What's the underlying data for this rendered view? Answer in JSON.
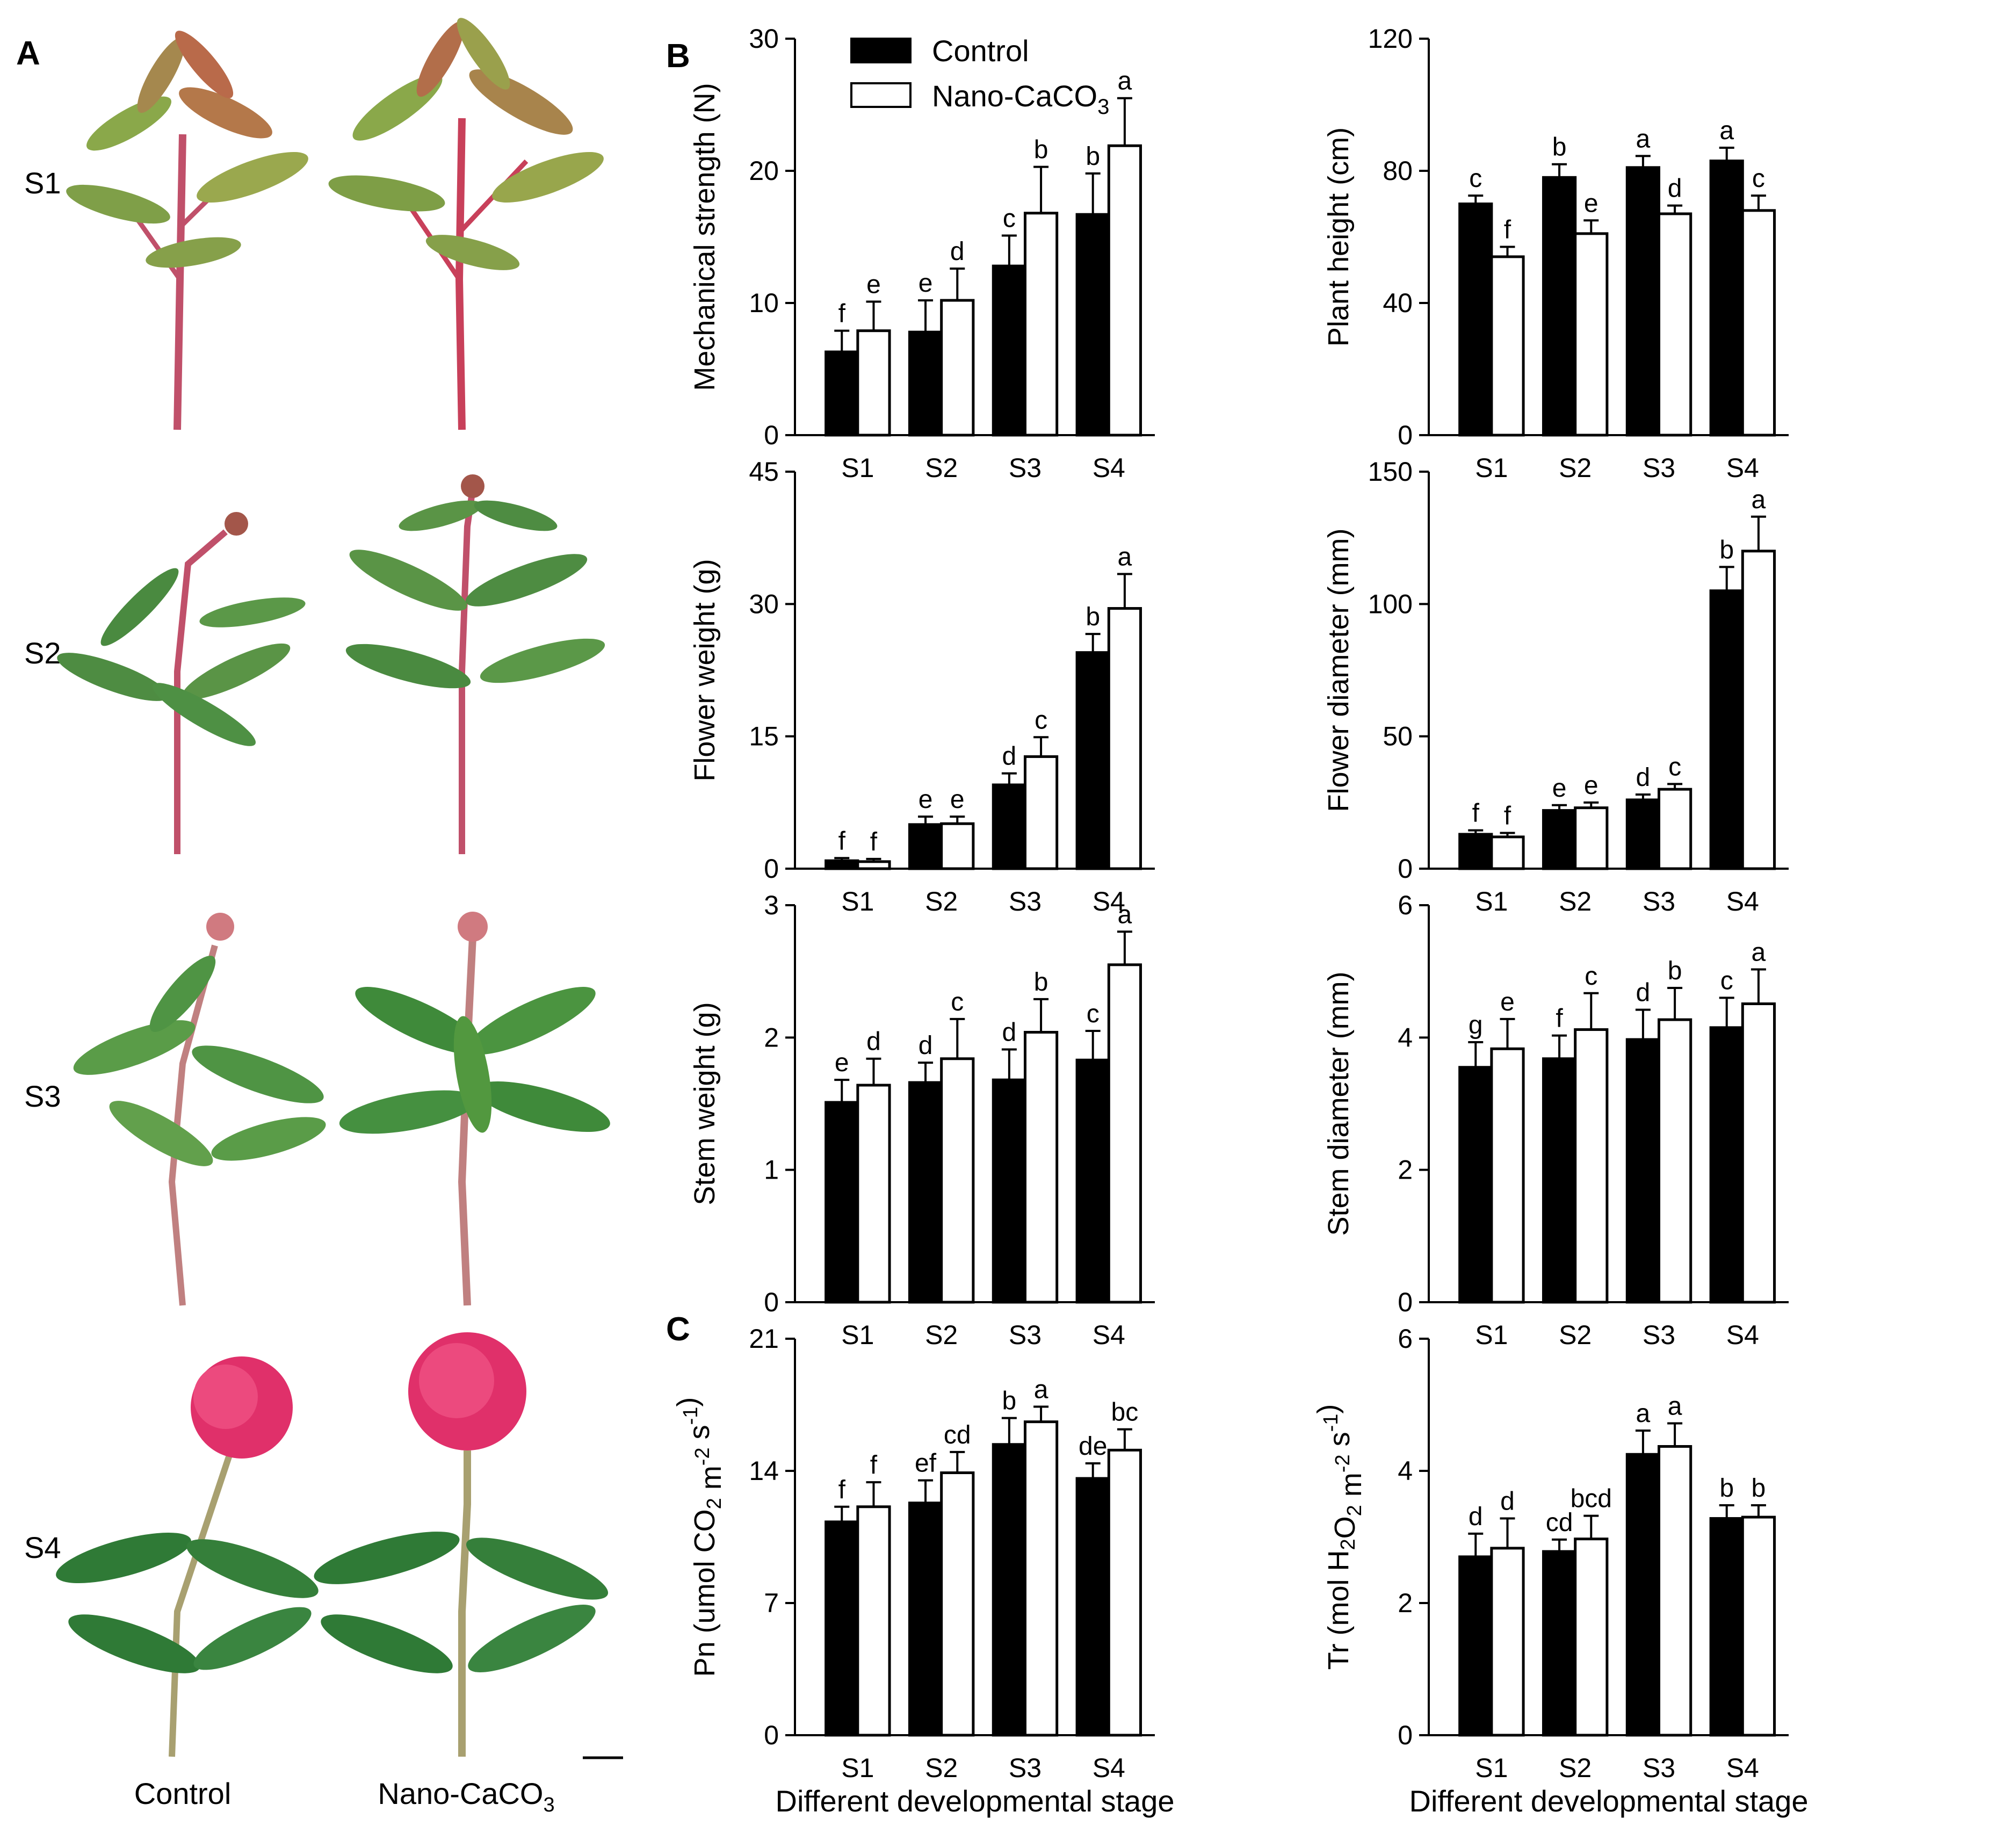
{
  "panel_letters": {
    "a": "A",
    "b": "B",
    "c": "C"
  },
  "photo_panel": {
    "stage_labels": [
      "S1",
      "S2",
      "S3",
      "S4"
    ],
    "column_labels": {
      "control": "Control",
      "nano": "Nano-CaCO",
      "nano_sub": "3"
    },
    "scale_bar": "scale-bar"
  },
  "legend": {
    "entries": [
      {
        "label": "Control",
        "color": "#000000"
      },
      {
        "label": "Nano-CaCO",
        "sub": "3",
        "color": "#ffffff"
      }
    ]
  },
  "colors": {
    "control": "#000000",
    "nano": "#ffffff",
    "axis": "#000000",
    "stem_dark": "#c0506a",
    "leaf_green": "#3f8a3a",
    "flower_pink": "#e0306a"
  },
  "chart_data": [
    {
      "id": "mechanical",
      "type": "bar",
      "ylabel": "Mechanical strength (N)",
      "ylabel_parts": [
        {
          "t": "Mechanical strength (N)"
        }
      ],
      "xlabel": "",
      "ylim": [
        0,
        30
      ],
      "yticks": [
        0,
        10,
        20,
        30
      ],
      "categories": [
        "S1",
        "S2",
        "S3",
        "S4"
      ],
      "series": [
        {
          "name": "Control",
          "values": [
            6.3,
            7.8,
            12.8,
            16.7
          ],
          "errors": [
            1.6,
            2.4,
            2.3,
            3.1
          ],
          "letters": [
            "f",
            "e",
            "c",
            "b"
          ]
        },
        {
          "name": "Nano-CaCO3",
          "values": [
            7.9,
            10.2,
            16.8,
            21.9
          ],
          "errors": [
            2.2,
            2.4,
            3.5,
            3.6
          ],
          "letters": [
            "e",
            "d",
            "b",
            "a"
          ]
        }
      ]
    },
    {
      "id": "height",
      "type": "bar",
      "ylabel": "Plant height (cm)",
      "ylabel_parts": [
        {
          "t": "Plant height (cm)"
        }
      ],
      "xlabel": "",
      "ylim": [
        0,
        120
      ],
      "yticks": [
        0,
        40,
        80,
        120
      ],
      "categories": [
        "S1",
        "S2",
        "S3",
        "S4"
      ],
      "series": [
        {
          "name": "Control",
          "values": [
            70,
            78,
            81,
            83
          ],
          "errors": [
            2.5,
            4.0,
            3.5,
            4.0
          ],
          "letters": [
            "c",
            "b",
            "a",
            "a"
          ]
        },
        {
          "name": "Nano-CaCO3",
          "values": [
            54,
            61,
            67,
            68
          ],
          "errors": [
            3.0,
            4.0,
            2.5,
            4.5
          ],
          "letters": [
            "f",
            "e",
            "d",
            "c"
          ]
        }
      ]
    },
    {
      "id": "flowerweight",
      "type": "bar",
      "ylabel": "Flower weight (g)",
      "ylabel_parts": [
        {
          "t": "Flower weight (g)"
        }
      ],
      "xlabel": "",
      "ylim": [
        0,
        45
      ],
      "yticks": [
        0,
        15,
        30,
        45
      ],
      "categories": [
        "S1",
        "S2",
        "S3",
        "S4"
      ],
      "series": [
        {
          "name": "Control",
          "values": [
            0.9,
            5.0,
            9.5,
            24.5
          ],
          "errors": [
            0.3,
            0.9,
            1.3,
            2.1
          ],
          "letters": [
            "f",
            "e",
            "d",
            "b"
          ]
        },
        {
          "name": "Nano-CaCO3",
          "values": [
            0.8,
            5.1,
            12.7,
            29.5
          ],
          "errors": [
            0.3,
            0.8,
            2.2,
            3.9
          ],
          "letters": [
            "f",
            "e",
            "c",
            "a"
          ]
        }
      ]
    },
    {
      "id": "flowerdiam",
      "type": "bar",
      "ylabel": "Flower diameter (mm)",
      "ylabel_parts": [
        {
          "t": "Flower diameter (mm)"
        }
      ],
      "xlabel": "",
      "ylim": [
        0,
        150
      ],
      "yticks": [
        0,
        50,
        100,
        150
      ],
      "categories": [
        "S1",
        "S2",
        "S3",
        "S4"
      ],
      "series": [
        {
          "name": "Control",
          "values": [
            13,
            22,
            26,
            105
          ],
          "errors": [
            1.5,
            2.0,
            2.0,
            9.0
          ],
          "letters": [
            "f",
            "e",
            "d",
            "b"
          ]
        },
        {
          "name": "Nano-CaCO3",
          "values": [
            12,
            23,
            30,
            120
          ],
          "errors": [
            1.5,
            2.0,
            2.0,
            13.0
          ],
          "letters": [
            "f",
            "e",
            "c",
            "a"
          ]
        }
      ]
    },
    {
      "id": "stemweight",
      "type": "bar",
      "ylabel": "Stem weight (g)",
      "ylabel_parts": [
        {
          "t": "Stem weight (g)"
        }
      ],
      "xlabel": "",
      "ylim": [
        0,
        3
      ],
      "yticks": [
        0,
        1,
        2,
        3
      ],
      "categories": [
        "S1",
        "S2",
        "S3",
        "S4"
      ],
      "series": [
        {
          "name": "Control",
          "values": [
            1.51,
            1.66,
            1.68,
            1.83
          ],
          "errors": [
            0.17,
            0.15,
            0.23,
            0.22
          ],
          "letters": [
            "e",
            "d",
            "d",
            "c"
          ]
        },
        {
          "name": "Nano-CaCO3",
          "values": [
            1.64,
            1.84,
            2.04,
            2.55
          ],
          "errors": [
            0.2,
            0.3,
            0.25,
            0.25
          ],
          "letters": [
            "d",
            "c",
            "b",
            "a"
          ]
        }
      ]
    },
    {
      "id": "stemdiam",
      "type": "bar",
      "ylabel": "Stem diameter (mm)",
      "ylabel_parts": [
        {
          "t": "Stem diameter (mm)"
        }
      ],
      "xlabel": "",
      "ylim": [
        0,
        6
      ],
      "yticks": [
        0,
        2,
        4,
        6
      ],
      "categories": [
        "S1",
        "S2",
        "S3",
        "S4"
      ],
      "series": [
        {
          "name": "Control",
          "values": [
            3.55,
            3.68,
            3.97,
            4.15
          ],
          "errors": [
            0.38,
            0.35,
            0.45,
            0.45
          ],
          "letters": [
            "g",
            "f",
            "d",
            "c"
          ]
        },
        {
          "name": "Nano-CaCO3",
          "values": [
            3.83,
            4.12,
            4.27,
            4.51
          ],
          "errors": [
            0.45,
            0.55,
            0.48,
            0.52
          ],
          "letters": [
            "e",
            "c",
            "b",
            "a"
          ]
        }
      ]
    },
    {
      "id": "pn",
      "type": "bar",
      "ylabel": "Pn (umol CO2 m-2 s-1)",
      "ylabel_parts": [
        {
          "t": "Pn (umol CO"
        },
        {
          "t": "2",
          "s": "sub"
        },
        {
          "t": " m"
        },
        {
          "t": "-2",
          "s": "sup"
        },
        {
          "t": " s"
        },
        {
          "t": "-1",
          "s": "sup"
        },
        {
          "t": ")"
        }
      ],
      "xlabel": "Different developmental stage",
      "ylim": [
        0,
        21
      ],
      "yticks": [
        0,
        7,
        14,
        21
      ],
      "categories": [
        "S1",
        "S2",
        "S3",
        "S4"
      ],
      "series": [
        {
          "name": "Control",
          "values": [
            11.3,
            12.3,
            15.4,
            13.6
          ],
          "errors": [
            0.8,
            1.2,
            1.4,
            0.8
          ],
          "letters": [
            "f",
            "ef",
            "b",
            "de"
          ]
        },
        {
          "name": "Nano-CaCO3",
          "values": [
            12.1,
            13.9,
            16.6,
            15.1
          ],
          "errors": [
            1.3,
            1.1,
            0.8,
            1.1
          ],
          "letters": [
            "f",
            "cd",
            "a",
            "bc"
          ]
        }
      ]
    },
    {
      "id": "tr",
      "type": "bar",
      "ylabel": "Tr (mol H2O2 m-2 s-1)",
      "ylabel_parts": [
        {
          "t": "Tr (mol H"
        },
        {
          "t": "2",
          "s": "sub"
        },
        {
          "t": "O"
        },
        {
          "t": "2",
          "s": "sub"
        },
        {
          "t": " m"
        },
        {
          "t": "-2",
          "s": "sup"
        },
        {
          "t": " s"
        },
        {
          "t": "-1",
          "s": "sup"
        },
        {
          "t": ")"
        }
      ],
      "xlabel": "Different developmental stage",
      "ylim": [
        0,
        6
      ],
      "yticks": [
        0,
        2,
        4,
        6
      ],
      "categories": [
        "S1",
        "S2",
        "S3",
        "S4"
      ],
      "series": [
        {
          "name": "Control",
          "values": [
            2.7,
            2.78,
            4.25,
            3.28
          ],
          "errors": [
            0.35,
            0.18,
            0.36,
            0.2
          ],
          "letters": [
            "d",
            "cd",
            "a",
            "b"
          ]
        },
        {
          "name": "Nano-CaCO3",
          "values": [
            2.83,
            2.97,
            4.37,
            3.3
          ],
          "errors": [
            0.45,
            0.35,
            0.35,
            0.18
          ],
          "letters": [
            "d",
            "bcd",
            "a",
            "b"
          ]
        }
      ]
    }
  ]
}
